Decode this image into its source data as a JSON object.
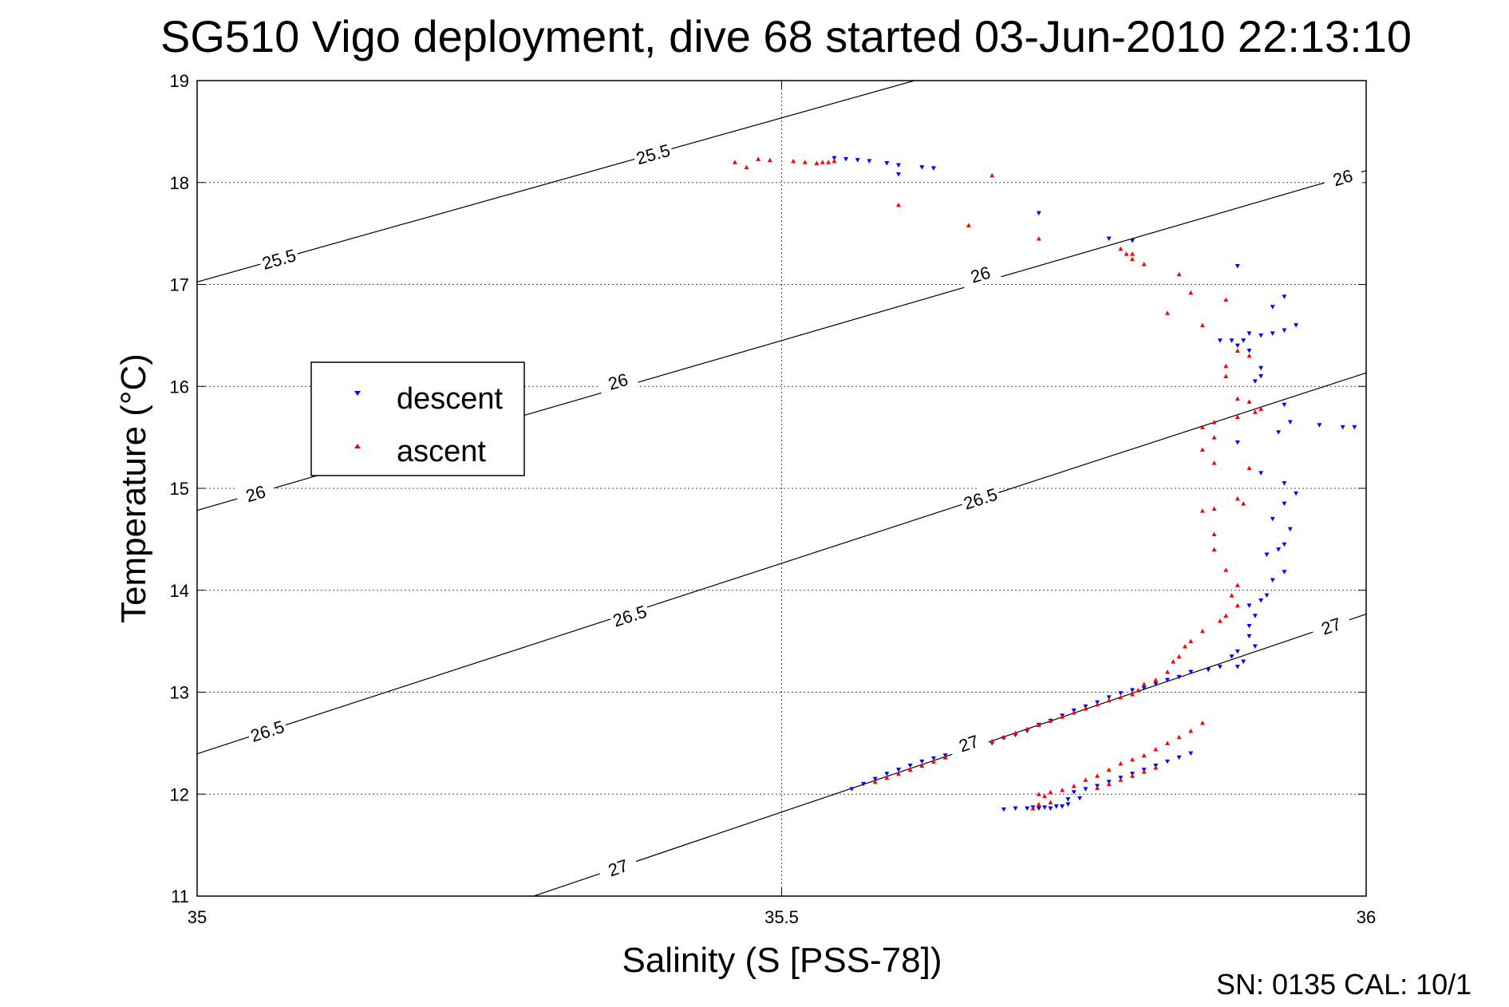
{
  "chart_data": {
    "type": "scatter",
    "title": "SG510 Vigo deployment, dive 68 started 03-Jun-2010 22:13:10",
    "xlabel": "Salinity (S [PSS-78])",
    "ylabel": "Temperature (°C)",
    "xlim": [
      35,
      36
    ],
    "ylim": [
      11,
      19
    ],
    "x_ticks": [
      "35",
      "35.5",
      "36"
    ],
    "y_ticks": [
      "11",
      "12",
      "13",
      "14",
      "15",
      "16",
      "17",
      "18",
      "19"
    ],
    "grid": true,
    "legend_position": "left-center",
    "footer": "SN: 0135  CAL: 10/1",
    "colors": {
      "descent": "#0000ff",
      "ascent": "#ff0000",
      "contours": "#000000"
    },
    "contours": [
      {
        "level": "25.5",
        "labels": [
          [
            35.07,
            17.25
          ],
          [
            35.39,
            18.28
          ]
        ]
      },
      {
        "level": "26",
        "labels": [
          [
            35.05,
            14.95
          ],
          [
            35.36,
            16.05
          ],
          [
            35.67,
            17.1
          ],
          [
            35.98,
            18.05
          ]
        ]
      },
      {
        "level": "26.5",
        "labels": [
          [
            35.06,
            12.62
          ],
          [
            35.37,
            13.75
          ],
          [
            35.67,
            14.9
          ]
        ]
      },
      {
        "level": "27",
        "labels": [
          [
            35.36,
            11.28
          ],
          [
            35.66,
            12.5
          ],
          [
            35.97,
            13.65
          ]
        ]
      }
    ],
    "series": [
      {
        "name": "descent",
        "marker": "down-triangle",
        "points": [
          [
            35.545,
            18.24
          ],
          [
            35.555,
            18.23
          ],
          [
            35.565,
            18.22
          ],
          [
            35.575,
            18.21
          ],
          [
            35.59,
            18.19
          ],
          [
            35.6,
            18.17
          ],
          [
            35.6,
            18.08
          ],
          [
            35.62,
            18.15
          ],
          [
            35.63,
            18.14
          ],
          [
            35.72,
            17.7
          ],
          [
            35.78,
            17.45
          ],
          [
            35.8,
            17.43
          ],
          [
            35.89,
            17.18
          ],
          [
            35.93,
            16.88
          ],
          [
            35.92,
            16.78
          ],
          [
            35.94,
            16.6
          ],
          [
            35.93,
            16.55
          ],
          [
            35.9,
            16.52
          ],
          [
            35.91,
            16.5
          ],
          [
            35.92,
            16.52
          ],
          [
            35.895,
            16.45
          ],
          [
            35.885,
            16.45
          ],
          [
            35.875,
            16.45
          ],
          [
            35.89,
            16.4
          ],
          [
            35.9,
            16.35
          ],
          [
            35.91,
            16.18
          ],
          [
            35.91,
            16.1
          ],
          [
            35.905,
            16.05
          ],
          [
            35.93,
            15.82
          ],
          [
            35.935,
            15.65
          ],
          [
            35.925,
            15.55
          ],
          [
            35.96,
            15.62
          ],
          [
            35.98,
            15.6
          ],
          [
            35.99,
            15.6
          ],
          [
            35.89,
            15.45
          ],
          [
            35.91,
            15.15
          ],
          [
            35.93,
            15.05
          ],
          [
            35.93,
            14.85
          ],
          [
            35.94,
            14.95
          ],
          [
            35.92,
            14.7
          ],
          [
            35.935,
            14.6
          ],
          [
            35.93,
            14.45
          ],
          [
            35.925,
            14.4
          ],
          [
            35.915,
            14.35
          ],
          [
            35.93,
            14.18
          ],
          [
            35.92,
            14.1
          ],
          [
            35.915,
            13.95
          ],
          [
            35.91,
            13.9
          ],
          [
            35.9,
            13.85
          ],
          [
            35.905,
            13.75
          ],
          [
            35.9,
            13.65
          ],
          [
            35.9,
            13.55
          ],
          [
            35.905,
            13.45
          ],
          [
            35.89,
            13.4
          ],
          [
            35.885,
            13.35
          ],
          [
            35.895,
            13.3
          ],
          [
            35.89,
            13.25
          ],
          [
            35.875,
            13.25
          ],
          [
            35.865,
            13.22
          ],
          [
            35.85,
            13.2
          ],
          [
            35.84,
            13.15
          ],
          [
            35.83,
            13.12
          ],
          [
            35.82,
            13.08
          ],
          [
            35.81,
            13.04
          ],
          [
            35.8,
            13.02
          ],
          [
            35.79,
            12.99
          ],
          [
            35.78,
            12.95
          ],
          [
            35.77,
            12.9
          ],
          [
            35.76,
            12.86
          ],
          [
            35.75,
            12.82
          ],
          [
            35.74,
            12.77
          ],
          [
            35.73,
            12.72
          ],
          [
            35.72,
            12.68
          ],
          [
            35.71,
            12.62
          ],
          [
            35.7,
            12.58
          ],
          [
            35.69,
            12.55
          ],
          [
            35.68,
            12.5
          ],
          [
            35.67,
            12.47
          ],
          [
            35.66,
            12.44
          ],
          [
            35.65,
            12.41
          ],
          [
            35.64,
            12.38
          ],
          [
            35.63,
            12.35
          ],
          [
            35.62,
            12.32
          ],
          [
            35.61,
            12.28
          ],
          [
            35.6,
            12.24
          ],
          [
            35.59,
            12.2
          ],
          [
            35.58,
            12.15
          ],
          [
            35.57,
            12.1
          ],
          [
            35.56,
            12.05
          ],
          [
            35.745,
            11.95
          ],
          [
            35.745,
            11.9
          ],
          [
            35.74,
            11.88
          ],
          [
            35.735,
            11.88
          ],
          [
            35.73,
            11.86
          ],
          [
            35.725,
            11.87
          ],
          [
            35.72,
            11.86
          ],
          [
            35.715,
            11.87
          ],
          [
            35.71,
            11.86
          ],
          [
            35.7,
            11.86
          ],
          [
            35.69,
            11.85
          ],
          [
            35.755,
            11.96
          ],
          [
            35.75,
            12.02
          ],
          [
            35.76,
            12.05
          ],
          [
            35.77,
            12.08
          ],
          [
            35.78,
            12.12
          ],
          [
            35.79,
            12.16
          ],
          [
            35.8,
            12.2
          ],
          [
            35.81,
            12.24
          ],
          [
            35.82,
            12.28
          ],
          [
            35.83,
            12.32
          ],
          [
            35.84,
            12.36
          ],
          [
            35.85,
            12.4
          ]
        ]
      },
      {
        "name": "ascent",
        "marker": "up-triangle",
        "points": [
          [
            35.46,
            18.2
          ],
          [
            35.47,
            18.15
          ],
          [
            35.48,
            18.23
          ],
          [
            35.49,
            18.22
          ],
          [
            35.51,
            18.21
          ],
          [
            35.52,
            18.2
          ],
          [
            35.53,
            18.19
          ],
          [
            35.535,
            18.2
          ],
          [
            35.54,
            18.2
          ],
          [
            35.545,
            18.21
          ],
          [
            35.68,
            18.07
          ],
          [
            35.6,
            17.78
          ],
          [
            35.66,
            17.58
          ],
          [
            35.72,
            17.45
          ],
          [
            35.79,
            17.35
          ],
          [
            35.795,
            17.3
          ],
          [
            35.8,
            17.25
          ],
          [
            35.81,
            17.2
          ],
          [
            35.8,
            17.3
          ],
          [
            35.84,
            17.1
          ],
          [
            35.85,
            16.92
          ],
          [
            35.83,
            16.72
          ],
          [
            35.88,
            16.85
          ],
          [
            35.86,
            16.6
          ],
          [
            35.89,
            16.35
          ],
          [
            35.9,
            16.3
          ],
          [
            35.88,
            16.2
          ],
          [
            35.88,
            16.1
          ],
          [
            35.89,
            15.88
          ],
          [
            35.9,
            15.85
          ],
          [
            35.91,
            15.78
          ],
          [
            35.905,
            15.75
          ],
          [
            35.89,
            15.7
          ],
          [
            35.87,
            15.65
          ],
          [
            35.86,
            15.6
          ],
          [
            35.87,
            15.5
          ],
          [
            35.86,
            15.38
          ],
          [
            35.87,
            15.25
          ],
          [
            35.9,
            15.2
          ],
          [
            35.89,
            14.9
          ],
          [
            35.895,
            14.85
          ],
          [
            35.87,
            14.8
          ],
          [
            35.86,
            14.78
          ],
          [
            35.87,
            14.55
          ],
          [
            35.87,
            14.4
          ],
          [
            35.88,
            14.2
          ],
          [
            35.89,
            14.05
          ],
          [
            35.885,
            13.95
          ],
          [
            35.89,
            13.85
          ],
          [
            35.88,
            13.75
          ],
          [
            35.875,
            13.7
          ],
          [
            35.86,
            13.6
          ],
          [
            35.85,
            13.5
          ],
          [
            35.845,
            13.45
          ],
          [
            35.84,
            13.35
          ],
          [
            35.835,
            13.3
          ],
          [
            35.83,
            13.2
          ],
          [
            35.82,
            13.12
          ],
          [
            35.81,
            13.08
          ],
          [
            35.805,
            13.02
          ],
          [
            35.8,
            12.98
          ],
          [
            35.79,
            12.95
          ],
          [
            35.78,
            12.92
          ],
          [
            35.77,
            12.88
          ],
          [
            35.76,
            12.84
          ],
          [
            35.75,
            12.8
          ],
          [
            35.74,
            12.76
          ],
          [
            35.73,
            12.72
          ],
          [
            35.72,
            12.68
          ],
          [
            35.71,
            12.64
          ],
          [
            35.7,
            12.6
          ],
          [
            35.69,
            12.56
          ],
          [
            35.68,
            12.52
          ],
          [
            35.67,
            12.48
          ],
          [
            35.66,
            12.44
          ],
          [
            35.65,
            12.4
          ],
          [
            35.64,
            12.36
          ],
          [
            35.63,
            12.32
          ],
          [
            35.62,
            12.28
          ],
          [
            35.61,
            12.24
          ],
          [
            35.6,
            12.2
          ],
          [
            35.59,
            12.16
          ],
          [
            35.58,
            12.12
          ],
          [
            35.77,
            12.06
          ],
          [
            35.78,
            12.1
          ],
          [
            35.79,
            12.14
          ],
          [
            35.8,
            12.18
          ],
          [
            35.81,
            12.22
          ],
          [
            35.82,
            12.26
          ],
          [
            35.73,
            12.02
          ],
          [
            35.725,
            11.98
          ],
          [
            35.72,
            11.9
          ],
          [
            35.715,
            11.86
          ],
          [
            35.72,
            12.0
          ],
          [
            35.73,
            11.92
          ],
          [
            35.74,
            12.04
          ],
          [
            35.75,
            12.08
          ],
          [
            35.76,
            12.14
          ],
          [
            35.77,
            12.18
          ],
          [
            35.78,
            12.24
          ],
          [
            35.79,
            12.3
          ],
          [
            35.8,
            12.34
          ],
          [
            35.81,
            12.38
          ],
          [
            35.82,
            12.44
          ],
          [
            35.83,
            12.5
          ],
          [
            35.84,
            12.56
          ],
          [
            35.85,
            12.62
          ],
          [
            35.86,
            12.7
          ]
        ]
      }
    ]
  }
}
